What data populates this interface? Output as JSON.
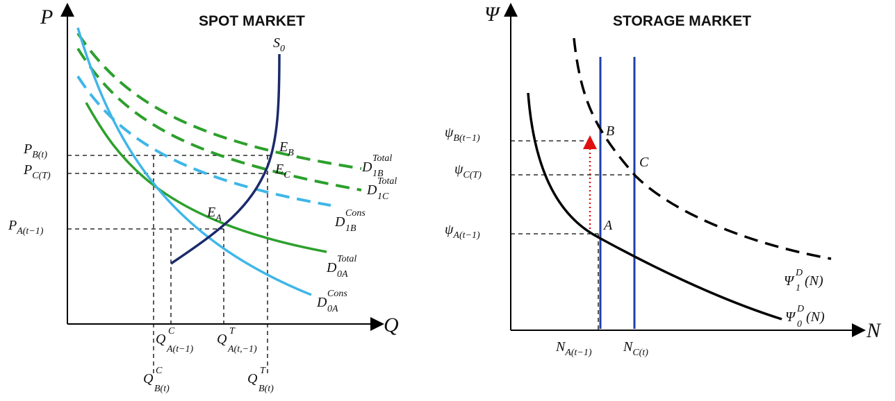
{
  "spot": {
    "title": "SPOT MARKET",
    "axes": {
      "y": "P",
      "x": "Q"
    },
    "curves": {
      "s0": {
        "main": "S",
        "sub": "0"
      },
      "d1b_total": {
        "main": "D",
        "sup": "Total",
        "sub": "1B"
      },
      "d1c_total": {
        "main": "D",
        "sup": "Total",
        "sub": "1C"
      },
      "d1b_cons": {
        "main": "D",
        "sup": "Cons",
        "sub": "1B"
      },
      "d0a_total": {
        "main": "D",
        "sup": "Total",
        "sub": "0A"
      },
      "d0a_cons": {
        "main": "D",
        "sup": "Cons",
        "sub": "0A"
      }
    },
    "points": {
      "eb": {
        "main": "E",
        "sub": "B"
      },
      "ec": {
        "main": "E",
        "sub": "C"
      },
      "ea": {
        "main": "E",
        "sub": "A"
      }
    },
    "price_labels": {
      "pb": {
        "main": "P",
        "sub": "B(t)"
      },
      "pc": {
        "main": "P",
        "sub": "C(T)"
      },
      "pa": {
        "main": "P",
        "sub": "A(t−1)"
      }
    },
    "quantity_labels": {
      "qac": {
        "main": "Q",
        "sup": "C",
        "sub": "A(t−1)"
      },
      "qat": {
        "main": "Q",
        "sup": "T",
        "sub": "A(t,−1)"
      },
      "qbc": {
        "main": "Q",
        "sup": "C",
        "sub": "B(t)"
      },
      "qbt": {
        "main": "Q",
        "sup": "T",
        "sub": "B(t)"
      }
    },
    "colors": {
      "supply": "#1b2a6b",
      "total_demand": "#2ca02c",
      "cons_demand": "#3fb6e8"
    }
  },
  "storage": {
    "title": "STORAGE MARKET",
    "axes": {
      "y": "Ψ",
      "x": "N"
    },
    "points": {
      "a": "A",
      "b": "B",
      "c": "C"
    },
    "price_labels": {
      "psib": {
        "main": "ψ",
        "sub": "B(t−1)"
      },
      "psic": {
        "main": "ψ",
        "sub": "C(T)"
      },
      "psia": {
        "main": "ψ",
        "sub": "A(t−1)"
      }
    },
    "quantity_labels": {
      "na": {
        "main": "N",
        "sub": "A(t−1)"
      },
      "nc": {
        "main": "N",
        "sub": "C(t)"
      }
    },
    "curves": {
      "psi1": {
        "main": "Ψ",
        "sup": "D",
        "sub": "1",
        "tail": "(N)"
      },
      "psi0": {
        "main": "Ψ",
        "sup": "D",
        "sub": "0",
        "tail": "(N)"
      }
    },
    "colors": {
      "supply_lines": "#1f3fa8",
      "demand": "#000000",
      "shift_arrow": "#e01010"
    }
  }
}
